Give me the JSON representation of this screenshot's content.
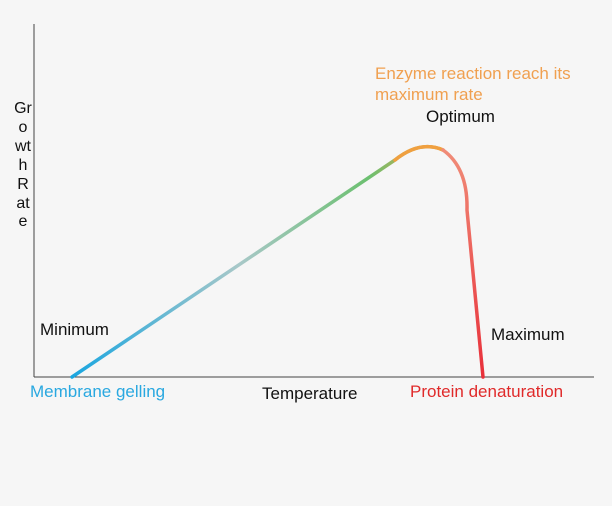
{
  "y_axis_label": "GrowthRate",
  "x_axis_label": "Temperature",
  "labels": {
    "minimum": "Minimum",
    "optimum": "Optimum",
    "maximum": "Maximum",
    "optimum_note": "Enzyme reaction reach its maximum rate",
    "low_end": "Membrane gelling",
    "high_end": "Protein denaturation"
  },
  "colors": {
    "low": "#1aa6e0",
    "rise": "#6cc070",
    "peak": "#f0a040",
    "fall": "#e8303a",
    "low_text": "#29a8e0",
    "high_text": "#e02a2a",
    "note_text": "#f0a050"
  }
}
